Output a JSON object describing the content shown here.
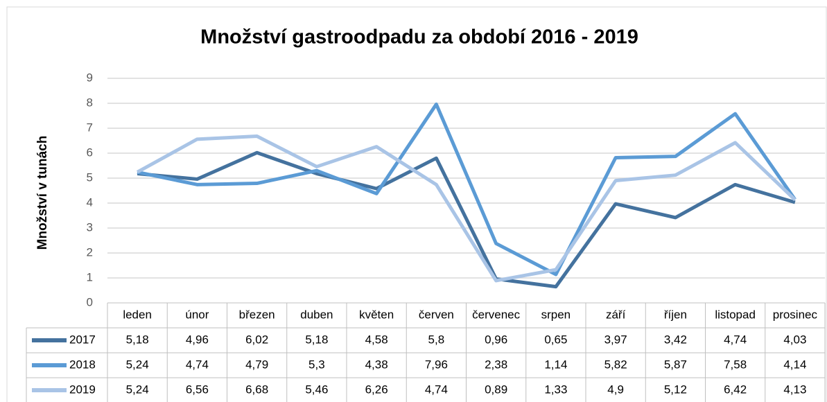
{
  "chart_data": {
    "type": "line",
    "title": "Množství gastroodpadu za období 2016 - 2019",
    "y_label": "Množství v tunách",
    "categories": [
      "leden",
      "únor",
      "březen",
      "duben",
      "květen",
      "červen",
      "červenec",
      "srpen",
      "září",
      "říjen",
      "listopad",
      "prosinec"
    ],
    "series": [
      {
        "name": "2017",
        "color": "#44729e",
        "values": [
          5.18,
          4.96,
          6.02,
          5.18,
          4.58,
          5.8,
          0.96,
          0.65,
          3.97,
          3.42,
          4.74,
          4.03
        ],
        "value_labels": [
          "5,18",
          "4,96",
          "6,02",
          "5,18",
          "4,58",
          "5,8",
          "0,96",
          "0,65",
          "3,97",
          "3,42",
          "4,74",
          "4,03"
        ]
      },
      {
        "name": "2018",
        "color": "#5b9bd5",
        "values": [
          5.24,
          4.74,
          4.79,
          5.3,
          4.38,
          7.96,
          2.38,
          1.14,
          5.82,
          5.87,
          7.58,
          4.14
        ],
        "value_labels": [
          "5,24",
          "4,74",
          "4,79",
          "5,3",
          "4,38",
          "7,96",
          "2,38",
          "1,14",
          "5,82",
          "5,87",
          "7,58",
          "4,14"
        ]
      },
      {
        "name": "2019",
        "color": "#a9c4e6",
        "values": [
          5.24,
          6.56,
          6.68,
          5.46,
          6.26,
          4.74,
          0.89,
          1.33,
          4.9,
          5.12,
          6.42,
          4.13
        ],
        "value_labels": [
          "5,24",
          "6,56",
          "6,68",
          "5,46",
          "6,26",
          "4,74",
          "0,89",
          "1,33",
          "4,9",
          "5,12",
          "6,42",
          "4,13"
        ]
      }
    ],
    "ylim": [
      0,
      9
    ],
    "yticks": [
      0,
      1,
      2,
      3,
      4,
      5,
      6,
      7,
      8,
      9
    ],
    "grid": true,
    "data_table": true
  }
}
